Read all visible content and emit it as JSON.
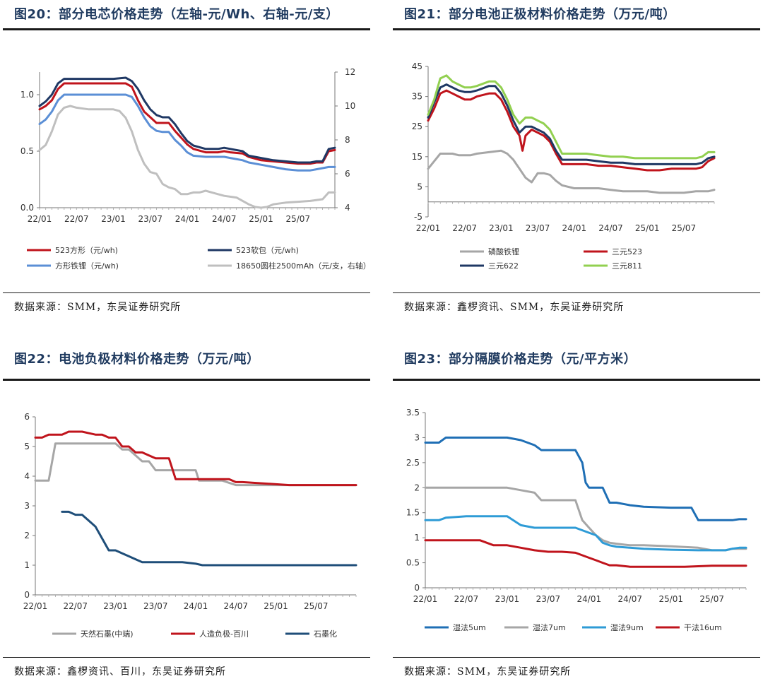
{
  "charts": [
    {
      "title": "图20：部分电芯价格走势（左轴-元/Wh、右轴-元/支）",
      "source": "数据来源：SMM，东吴证券研究所"
    },
    {
      "title": "图21：部分电池正极材料价格走势（万元/吨）",
      "source": "数据来源：鑫椤资讯、SMM，东吴证券研究所"
    },
    {
      "title": "图22：电池负极材料价格走势（万元/吨）",
      "source": "数据来源：鑫椤资讯、百川，东吴证券研究所"
    },
    {
      "title": "图23：部分隔膜价格走势（元/平方米）",
      "source": "数据来源：SMM，东吴证券研究所"
    }
  ],
  "chart_data": [
    {
      "type": "line",
      "x_ticks": [
        "22/01",
        "22/07",
        "23/01",
        "23/07",
        "24/01",
        "24/07",
        "25/01",
        "25/07"
      ],
      "ylim": [
        0,
        1.2
      ],
      "yticks": [
        "0.0",
        "0.5",
        "1.0"
      ],
      "y2lim": [
        4,
        12
      ],
      "y2ticks": [
        "4",
        "6",
        "8",
        "10",
        "12"
      ],
      "series": [
        {
          "name": "523方形（元/wh)",
          "color": "#c0141c",
          "axis": "left",
          "x": [
            0,
            1,
            2,
            3,
            4,
            5,
            6,
            7,
            9,
            12,
            14,
            15,
            16,
            17,
            18,
            19,
            20,
            21,
            22,
            23,
            24,
            25,
            27,
            28,
            29,
            30,
            31,
            33,
            34,
            36,
            38,
            40,
            42,
            44,
            45,
            46,
            47,
            48
          ],
          "y": [
            0.87,
            0.9,
            0.95,
            1.05,
            1.1,
            1.1,
            1.1,
            1.1,
            1.1,
            1.1,
            1.1,
            1.07,
            0.95,
            0.85,
            0.8,
            0.75,
            0.75,
            0.75,
            0.68,
            0.62,
            0.56,
            0.52,
            0.49,
            0.49,
            0.49,
            0.5,
            0.49,
            0.48,
            0.45,
            0.42,
            0.41,
            0.4,
            0.39,
            0.39,
            0.4,
            0.4,
            0.5,
            0.51
          ]
        },
        {
          "name": "523软包（元/wh)",
          "color": "#1f3864",
          "axis": "left",
          "x": [
            0,
            1,
            2,
            3,
            4,
            5,
            6,
            7,
            9,
            12,
            14,
            15,
            16,
            17,
            18,
            19,
            20,
            21,
            22,
            23,
            24,
            25,
            27,
            28,
            29,
            30,
            31,
            33,
            34,
            36,
            38,
            40,
            42,
            44,
            45,
            46,
            47,
            48
          ],
          "y": [
            0.9,
            0.94,
            1.0,
            1.1,
            1.14,
            1.14,
            1.14,
            1.14,
            1.14,
            1.14,
            1.15,
            1.12,
            1.05,
            0.95,
            0.87,
            0.82,
            0.8,
            0.8,
            0.74,
            0.66,
            0.59,
            0.55,
            0.52,
            0.52,
            0.52,
            0.53,
            0.52,
            0.5,
            0.46,
            0.44,
            0.42,
            0.41,
            0.4,
            0.4,
            0.41,
            0.41,
            0.52,
            0.53
          ]
        },
        {
          "name": "方形铁锂（元/wh)",
          "color": "#5b8fd6",
          "axis": "left",
          "x": [
            0,
            1,
            2,
            3,
            4,
            5,
            6,
            7,
            9,
            12,
            14,
            15,
            16,
            17,
            18,
            19,
            20,
            21,
            22,
            23,
            24,
            25,
            27,
            28,
            29,
            30,
            31,
            33,
            34,
            36,
            38,
            40,
            42,
            44,
            45,
            46,
            47,
            48
          ],
          "y": [
            0.74,
            0.78,
            0.85,
            0.95,
            1.0,
            1.0,
            1.0,
            1.0,
            1.0,
            1.0,
            1.0,
            0.98,
            0.9,
            0.8,
            0.72,
            0.68,
            0.67,
            0.67,
            0.6,
            0.55,
            0.49,
            0.46,
            0.45,
            0.45,
            0.45,
            0.45,
            0.44,
            0.42,
            0.4,
            0.38,
            0.36,
            0.34,
            0.33,
            0.33,
            0.34,
            0.35,
            0.36,
            0.36
          ]
        },
        {
          "name": "18650圆柱2500mAh（元/支，右轴）",
          "color": "#bfbfbf",
          "axis": "right",
          "x": [
            0,
            1,
            2,
            3,
            4,
            5,
            6,
            8,
            10,
            12,
            13,
            14,
            15,
            16,
            17,
            18,
            19,
            20,
            21,
            22,
            23,
            24,
            25,
            26,
            27,
            28,
            29,
            30,
            32,
            34,
            35,
            36,
            37,
            38,
            40,
            42,
            44,
            46,
            47,
            48
          ],
          "y": [
            7.4,
            7.7,
            8.5,
            9.5,
            9.9,
            10.0,
            9.9,
            9.8,
            9.8,
            9.8,
            9.7,
            9.3,
            8.5,
            7.4,
            6.6,
            6.1,
            6.0,
            5.4,
            5.2,
            5.1,
            4.8,
            4.8,
            4.9,
            4.9,
            5.0,
            4.9,
            4.8,
            4.7,
            4.6,
            4.2,
            4.05,
            4.0,
            4.05,
            4.2,
            4.3,
            4.35,
            4.4,
            4.5,
            4.9,
            4.9
          ]
        }
      ]
    },
    {
      "type": "line",
      "x_ticks": [
        "22/01",
        "22/07",
        "23/01",
        "23/07",
        "24/01",
        "24/07",
        "25/01",
        "25/07"
      ],
      "ylim": [
        -5,
        45
      ],
      "yticks": [
        "-5",
        "5",
        "15",
        "25",
        "35",
        "45"
      ],
      "series": [
        {
          "name": "磷酸铁锂",
          "color": "#a6a6a6",
          "x": [
            0,
            1,
            2,
            3,
            4,
            5,
            6,
            7,
            8,
            10,
            12,
            13,
            14,
            15,
            16,
            17,
            18,
            19,
            20,
            21,
            22,
            24,
            26,
            28,
            30,
            32,
            34,
            36,
            38,
            40,
            42,
            44,
            46,
            47
          ],
          "y": [
            11,
            13.5,
            16,
            16,
            16,
            15.5,
            15.5,
            15.5,
            16,
            16.5,
            17,
            16,
            14,
            11,
            8,
            6.5,
            9.5,
            9.5,
            9,
            7,
            5.5,
            4.5,
            4.5,
            4.5,
            4,
            3.5,
            3.5,
            3.5,
            3,
            3,
            3,
            3.5,
            3.5,
            4
          ]
        },
        {
          "name": "三元523",
          "color": "#c0141c",
          "x": [
            0,
            1,
            2,
            3,
            4,
            5,
            6,
            7,
            8,
            10,
            11,
            12,
            13,
            14,
            15,
            15.5,
            16,
            17,
            18,
            19,
            20,
            21,
            22,
            24,
            26,
            28,
            30,
            32,
            34,
            36,
            38,
            40,
            42,
            44,
            45,
            46,
            47
          ],
          "y": [
            27,
            31,
            36,
            37,
            36,
            35,
            34,
            34,
            35,
            36,
            36,
            34,
            30,
            25,
            22,
            17,
            22,
            24,
            23,
            22,
            20,
            16,
            12.5,
            12.5,
            12.5,
            12,
            12,
            11.5,
            11,
            10.5,
            10.5,
            11,
            11,
            11,
            11.5,
            13.5,
            14.5
          ]
        },
        {
          "name": "三元622",
          "color": "#1f3864",
          "x": [
            0,
            1,
            2,
            3,
            4,
            5,
            6,
            7,
            8,
            10,
            11,
            12,
            13,
            14,
            15,
            16,
            17,
            18,
            19,
            20,
            21,
            22,
            24,
            26,
            28,
            30,
            32,
            34,
            36,
            38,
            40,
            42,
            44,
            45,
            46,
            47
          ],
          "y": [
            28,
            33,
            38,
            39,
            38,
            37,
            36.5,
            36.5,
            37,
            38.5,
            38.5,
            36,
            32,
            27,
            23,
            25,
            25,
            24,
            23,
            21,
            17,
            14,
            14,
            14,
            13.5,
            13,
            13,
            12.5,
            12.5,
            12.5,
            12.5,
            12.5,
            12.5,
            13,
            14.5,
            15
          ]
        },
        {
          "name": "三元811",
          "color": "#92d050",
          "x": [
            0,
            1,
            2,
            3,
            4,
            5,
            6,
            7,
            8,
            10,
            11,
            12,
            13,
            14,
            15,
            16,
            17,
            18,
            19,
            20,
            21,
            22,
            24,
            26,
            28,
            30,
            32,
            34,
            36,
            38,
            40,
            42,
            44,
            45,
            46,
            47
          ],
          "y": [
            29,
            34,
            41,
            42,
            40,
            39,
            38,
            38,
            38.5,
            40,
            40,
            38,
            34,
            29,
            26,
            28,
            28,
            27,
            26,
            24,
            20,
            16,
            16,
            16,
            15.5,
            15,
            15,
            14.5,
            14.5,
            14.5,
            14.5,
            14.5,
            14.5,
            15,
            16.5,
            16.5
          ]
        }
      ]
    },
    {
      "type": "line",
      "x_ticks": [
        "22/01",
        "22/07",
        "23/01",
        "23/07",
        "24/01",
        "24/07",
        "25/01",
        "25/07"
      ],
      "ylim": [
        0,
        6
      ],
      "yticks": [
        "0",
        "1",
        "2",
        "3",
        "4",
        "5",
        "6"
      ],
      "series": [
        {
          "name": "天然石墨(中端)",
          "color": "#a6a6a6",
          "x": [
            0,
            2,
            3,
            4,
            8,
            12,
            13,
            14,
            15,
            16,
            17,
            18,
            19,
            19.5,
            20,
            24,
            24.5,
            28,
            30,
            31,
            32,
            48
          ],
          "y": [
            3.85,
            3.85,
            5.1,
            5.1,
            5.1,
            5.1,
            4.9,
            4.9,
            4.7,
            4.5,
            4.5,
            4.2,
            4.2,
            4.2,
            4.2,
            4.2,
            3.85,
            3.85,
            3.7,
            3.7,
            3.7,
            3.7
          ]
        },
        {
          "name": "人造负极-百川",
          "color": "#c0141c",
          "x": [
            0,
            1,
            2,
            3,
            4,
            5,
            6,
            7,
            9,
            10,
            11,
            12,
            13,
            14,
            15,
            16,
            17,
            18,
            19,
            20,
            21,
            22,
            26,
            29,
            30,
            31,
            38,
            48
          ],
          "y": [
            5.3,
            5.3,
            5.4,
            5.4,
            5.4,
            5.5,
            5.5,
            5.5,
            5.4,
            5.4,
            5.3,
            5.3,
            5.0,
            5.0,
            4.8,
            4.8,
            4.7,
            4.6,
            4.6,
            4.6,
            3.9,
            3.9,
            3.9,
            3.9,
            3.8,
            3.8,
            3.7,
            3.7
          ]
        },
        {
          "name": "石墨化",
          "color": "#1f4e79",
          "x": [
            4,
            5,
            6,
            7,
            8,
            9,
            10,
            11,
            12,
            13,
            14,
            15,
            16,
            17,
            18,
            19,
            20,
            22,
            24,
            25,
            26,
            28,
            30,
            34,
            38,
            42,
            48
          ],
          "y": [
            2.8,
            2.8,
            2.7,
            2.7,
            2.5,
            2.3,
            1.9,
            1.5,
            1.5,
            1.4,
            1.3,
            1.2,
            1.1,
            1.1,
            1.1,
            1.1,
            1.1,
            1.1,
            1.05,
            1.0,
            1.0,
            1.0,
            1.0,
            1.0,
            1.0,
            1.0,
            1.0
          ]
        }
      ]
    },
    {
      "type": "line",
      "x_ticks": [
        "22/01",
        "22/07",
        "23/01",
        "23/07",
        "24/01",
        "24/07",
        "25/01",
        "25/07"
      ],
      "ylim": [
        0,
        3.5
      ],
      "yticks": [
        "0",
        "0.5",
        "1",
        "1.5",
        "2",
        "2.5",
        "3",
        "3.5"
      ],
      "series": [
        {
          "name": "湿法5um",
          "color": "#1f6fb5",
          "x": [
            0,
            2,
            3,
            6,
            10,
            12,
            14,
            16,
            17,
            20,
            22,
            23,
            23.5,
            24,
            25,
            26,
            27,
            28,
            30,
            32,
            36,
            39,
            40,
            42,
            45,
            46,
            47
          ],
          "y": [
            2.9,
            2.9,
            3.0,
            3.0,
            3.0,
            3.0,
            2.95,
            2.85,
            2.75,
            2.75,
            2.75,
            2.5,
            2.1,
            2.0,
            2.0,
            2.0,
            1.7,
            1.7,
            1.65,
            1.62,
            1.6,
            1.6,
            1.35,
            1.35,
            1.35,
            1.37,
            1.37
          ]
        },
        {
          "name": "湿法7um",
          "color": "#a6a6a6",
          "x": [
            0,
            4,
            8,
            12,
            14,
            16,
            17,
            20,
            22,
            23,
            24,
            25,
            26,
            27,
            28,
            30,
            32,
            36,
            40,
            42,
            44,
            45,
            46,
            47
          ],
          "y": [
            2.0,
            2.0,
            2.0,
            2.0,
            1.95,
            1.9,
            1.75,
            1.75,
            1.75,
            1.35,
            1.2,
            1.05,
            0.95,
            0.9,
            0.88,
            0.85,
            0.85,
            0.83,
            0.8,
            0.75,
            0.75,
            0.78,
            0.78,
            0.78
          ]
        },
        {
          "name": "湿法9um",
          "color": "#2e9bd6",
          "x": [
            0,
            2,
            3,
            6,
            10,
            12,
            14,
            16,
            20,
            22,
            24,
            25,
            26,
            27,
            28,
            30,
            32,
            36,
            40,
            42,
            44,
            45,
            46,
            47
          ],
          "y": [
            1.35,
            1.35,
            1.4,
            1.43,
            1.43,
            1.43,
            1.25,
            1.2,
            1.2,
            1.2,
            1.1,
            1.05,
            0.9,
            0.85,
            0.82,
            0.8,
            0.78,
            0.76,
            0.75,
            0.75,
            0.75,
            0.78,
            0.8,
            0.8
          ]
        },
        {
          "name": "干法16um",
          "color": "#c0141c",
          "x": [
            0,
            4,
            8,
            10,
            12,
            14,
            16,
            18,
            20,
            22,
            24,
            25,
            26,
            27,
            28,
            30,
            34,
            38,
            42,
            44,
            46,
            47
          ],
          "y": [
            0.95,
            0.95,
            0.95,
            0.85,
            0.85,
            0.8,
            0.75,
            0.72,
            0.72,
            0.7,
            0.6,
            0.55,
            0.5,
            0.45,
            0.45,
            0.42,
            0.42,
            0.42,
            0.44,
            0.44,
            0.44,
            0.44
          ]
        }
      ]
    }
  ]
}
